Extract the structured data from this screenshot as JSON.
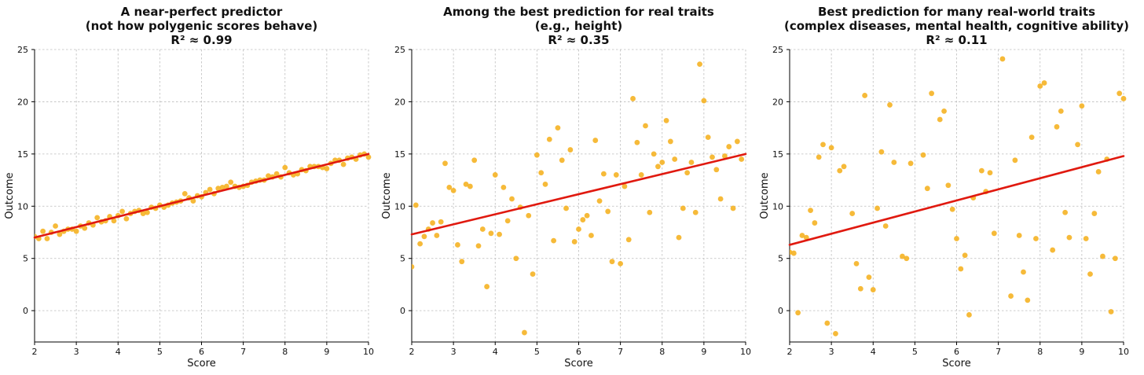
{
  "chart_data": [
    {
      "type": "scatter",
      "title_lines": [
        "A near-perfect predictor",
        "(not how polygenic scores behave)",
        "R² ≈ 0.99"
      ],
      "xlabel": "Score",
      "ylabel": "Outcome",
      "xlim": [
        2,
        10
      ],
      "ylim": [
        -3,
        25
      ],
      "xticks": [
        2,
        3,
        4,
        5,
        6,
        7,
        8,
        9,
        10
      ],
      "yticks": [
        0,
        5,
        10,
        15,
        20,
        25
      ],
      "grid": true,
      "point_color": "#F5B324",
      "line_color": "#E0190F",
      "fit_line": {
        "x": [
          2,
          10
        ],
        "y": [
          7.0,
          15.0
        ]
      },
      "points": [
        [
          2.0,
          7.1
        ],
        [
          2.1,
          6.9
        ],
        [
          2.2,
          7.6
        ],
        [
          2.3,
          6.9
        ],
        [
          2.4,
          7.5
        ],
        [
          2.5,
          8.1
        ],
        [
          2.6,
          7.3
        ],
        [
          2.7,
          7.6
        ],
        [
          2.8,
          7.8
        ],
        [
          2.9,
          7.8
        ],
        [
          3.0,
          7.6
        ],
        [
          3.1,
          8.1
        ],
        [
          3.2,
          7.9
        ],
        [
          3.3,
          8.4
        ],
        [
          3.4,
          8.2
        ],
        [
          3.5,
          8.9
        ],
        [
          3.6,
          8.5
        ],
        [
          3.7,
          8.6
        ],
        [
          3.8,
          9.0
        ],
        [
          3.9,
          8.6
        ],
        [
          4.0,
          9.1
        ],
        [
          4.1,
          9.5
        ],
        [
          4.2,
          8.8
        ],
        [
          4.3,
          9.3
        ],
        [
          4.4,
          9.5
        ],
        [
          4.5,
          9.6
        ],
        [
          4.6,
          9.3
        ],
        [
          4.7,
          9.4
        ],
        [
          4.8,
          9.9
        ],
        [
          4.9,
          9.8
        ],
        [
          5.0,
          10.1
        ],
        [
          5.1,
          9.9
        ],
        [
          5.2,
          10.1
        ],
        [
          5.3,
          10.3
        ],
        [
          5.4,
          10.4
        ],
        [
          5.5,
          10.5
        ],
        [
          5.6,
          11.2
        ],
        [
          5.7,
          10.8
        ],
        [
          5.8,
          10.5
        ],
        [
          5.9,
          11.0
        ],
        [
          6.0,
          10.9
        ],
        [
          6.1,
          11.3
        ],
        [
          6.2,
          11.6
        ],
        [
          6.3,
          11.2
        ],
        [
          6.4,
          11.7
        ],
        [
          6.5,
          11.8
        ],
        [
          6.6,
          11.9
        ],
        [
          6.7,
          12.3
        ],
        [
          6.8,
          11.9
        ],
        [
          6.9,
          11.8
        ],
        [
          7.0,
          11.9
        ],
        [
          7.1,
          12.0
        ],
        [
          7.2,
          12.3
        ],
        [
          7.3,
          12.4
        ],
        [
          7.4,
          12.5
        ],
        [
          7.5,
          12.5
        ],
        [
          7.6,
          12.9
        ],
        [
          7.7,
          12.8
        ],
        [
          7.8,
          13.1
        ],
        [
          7.9,
          12.8
        ],
        [
          8.0,
          13.7
        ],
        [
          8.1,
          13.2
        ],
        [
          8.2,
          13.0
        ],
        [
          8.3,
          13.1
        ],
        [
          8.4,
          13.5
        ],
        [
          8.5,
          13.4
        ],
        [
          8.6,
          13.8
        ],
        [
          8.7,
          13.8
        ],
        [
          8.8,
          13.8
        ],
        [
          8.9,
          13.7
        ],
        [
          9.0,
          13.6
        ],
        [
          9.1,
          14.1
        ],
        [
          9.2,
          14.4
        ],
        [
          9.3,
          14.4
        ],
        [
          9.4,
          14.0
        ],
        [
          9.5,
          14.6
        ],
        [
          9.6,
          14.7
        ],
        [
          9.7,
          14.5
        ],
        [
          9.8,
          14.9
        ],
        [
          9.9,
          15.0
        ],
        [
          10.0,
          14.7
        ]
      ]
    },
    {
      "type": "scatter",
      "title_lines": [
        "Among the best prediction for real traits",
        "(e.g., height)",
        "R² ≈ 0.35"
      ],
      "xlabel": "Score",
      "ylabel": "Outcome",
      "xlim": [
        2,
        10
      ],
      "ylim": [
        -3,
        25
      ],
      "xticks": [
        2,
        3,
        4,
        5,
        6,
        7,
        8,
        9,
        10
      ],
      "yticks": [
        0,
        5,
        10,
        15,
        20,
        25
      ],
      "grid": true,
      "point_color": "#F5B324",
      "line_color": "#E0190F",
      "fit_line": {
        "x": [
          2,
          10
        ],
        "y": [
          7.3,
          15.0
        ]
      },
      "points": [
        [
          2.0,
          4.2
        ],
        [
          2.1,
          10.1
        ],
        [
          2.2,
          6.4
        ],
        [
          2.3,
          7.1
        ],
        [
          2.4,
          7.8
        ],
        [
          2.5,
          8.4
        ],
        [
          2.6,
          7.2
        ],
        [
          2.7,
          8.5
        ],
        [
          2.8,
          14.1
        ],
        [
          2.9,
          11.8
        ],
        [
          3.0,
          11.5
        ],
        [
          3.1,
          6.3
        ],
        [
          3.2,
          4.7
        ],
        [
          3.3,
          12.1
        ],
        [
          3.4,
          11.9
        ],
        [
          3.5,
          14.4
        ],
        [
          3.6,
          6.2
        ],
        [
          3.7,
          7.8
        ],
        [
          3.8,
          2.3
        ],
        [
          3.9,
          7.4
        ],
        [
          4.0,
          13.0
        ],
        [
          4.1,
          7.3
        ],
        [
          4.2,
          11.8
        ],
        [
          4.3,
          8.6
        ],
        [
          4.4,
          10.7
        ],
        [
          4.5,
          5.0
        ],
        [
          4.6,
          9.9
        ],
        [
          4.7,
          -2.1
        ],
        [
          4.8,
          9.1
        ],
        [
          4.9,
          3.5
        ],
        [
          5.0,
          14.9
        ],
        [
          5.1,
          13.2
        ],
        [
          5.2,
          12.1
        ],
        [
          5.3,
          16.4
        ],
        [
          5.4,
          6.7
        ],
        [
          5.5,
          17.5
        ],
        [
          5.6,
          14.4
        ],
        [
          5.7,
          9.8
        ],
        [
          5.8,
          15.4
        ],
        [
          5.9,
          6.6
        ],
        [
          6.0,
          7.8
        ],
        [
          6.1,
          8.7
        ],
        [
          6.2,
          9.1
        ],
        [
          6.3,
          7.2
        ],
        [
          6.4,
          16.3
        ],
        [
          6.5,
          10.5
        ],
        [
          6.6,
          13.1
        ],
        [
          6.7,
          9.5
        ],
        [
          6.8,
          4.7
        ],
        [
          6.9,
          13.0
        ],
        [
          7.0,
          4.5
        ],
        [
          7.1,
          11.9
        ],
        [
          7.2,
          6.8
        ],
        [
          7.3,
          20.3
        ],
        [
          7.4,
          16.1
        ],
        [
          7.5,
          13.0
        ],
        [
          7.6,
          17.7
        ],
        [
          7.7,
          9.4
        ],
        [
          7.8,
          15.0
        ],
        [
          7.9,
          13.8
        ],
        [
          8.0,
          14.2
        ],
        [
          8.1,
          18.2
        ],
        [
          8.2,
          16.2
        ],
        [
          8.3,
          14.5
        ],
        [
          8.4,
          7.0
        ],
        [
          8.5,
          9.8
        ],
        [
          8.6,
          13.2
        ],
        [
          8.7,
          14.2
        ],
        [
          8.8,
          9.4
        ],
        [
          8.9,
          23.6
        ],
        [
          9.0,
          20.1
        ],
        [
          9.1,
          16.6
        ],
        [
          9.2,
          14.7
        ],
        [
          9.3,
          13.5
        ],
        [
          9.4,
          10.7
        ],
        [
          9.5,
          14.8
        ],
        [
          9.6,
          15.7
        ],
        [
          9.7,
          9.8
        ],
        [
          9.8,
          16.2
        ],
        [
          9.9,
          14.5
        ]
      ]
    },
    {
      "type": "scatter",
      "title_lines": [
        "Best prediction for many real-world traits",
        "(complex diseases, mental health, cognitive ability)",
        "R² ≈ 0.11"
      ],
      "xlabel": "Score",
      "ylabel": "Outcome",
      "xlim": [
        2,
        10
      ],
      "ylim": [
        -3,
        25
      ],
      "xticks": [
        2,
        3,
        4,
        5,
        6,
        7,
        8,
        9,
        10
      ],
      "yticks": [
        0,
        5,
        10,
        15,
        20,
        25
      ],
      "grid": true,
      "point_color": "#F5B324",
      "line_color": "#E0190F",
      "fit_line": {
        "x": [
          2,
          10
        ],
        "y": [
          6.3,
          14.8
        ]
      },
      "points": [
        [
          2.0,
          5.6
        ],
        [
          2.1,
          5.5
        ],
        [
          2.2,
          -0.2
        ],
        [
          2.3,
          7.2
        ],
        [
          2.4,
          7.0
        ],
        [
          2.5,
          9.6
        ],
        [
          2.6,
          8.4
        ],
        [
          2.7,
          14.7
        ],
        [
          2.8,
          15.9
        ],
        [
          2.9,
          -1.2
        ],
        [
          3.0,
          15.6
        ],
        [
          3.1,
          -2.2
        ],
        [
          3.2,
          13.4
        ],
        [
          3.3,
          13.8
        ],
        [
          3.5,
          9.3
        ],
        [
          3.6,
          4.5
        ],
        [
          3.7,
          2.1
        ],
        [
          3.8,
          20.6
        ],
        [
          3.9,
          3.2
        ],
        [
          4.0,
          2.0
        ],
        [
          4.1,
          9.8
        ],
        [
          4.2,
          15.2
        ],
        [
          4.3,
          8.1
        ],
        [
          4.4,
          19.7
        ],
        [
          4.5,
          14.2
        ],
        [
          4.7,
          5.2
        ],
        [
          4.8,
          5.0
        ],
        [
          4.9,
          14.1
        ],
        [
          5.2,
          14.9
        ],
        [
          5.3,
          11.7
        ],
        [
          5.4,
          20.8
        ],
        [
          5.6,
          18.3
        ],
        [
          5.7,
          19.1
        ],
        [
          5.8,
          12.0
        ],
        [
          5.9,
          9.7
        ],
        [
          6.0,
          6.9
        ],
        [
          6.1,
          4.0
        ],
        [
          6.2,
          5.3
        ],
        [
          6.3,
          -0.4
        ],
        [
          6.4,
          10.8
        ],
        [
          6.6,
          13.4
        ],
        [
          6.7,
          11.4
        ],
        [
          6.8,
          13.2
        ],
        [
          6.9,
          7.4
        ],
        [
          7.1,
          24.1
        ],
        [
          7.3,
          1.4
        ],
        [
          7.4,
          14.4
        ],
        [
          7.5,
          7.2
        ],
        [
          7.6,
          3.7
        ],
        [
          7.7,
          1.0
        ],
        [
          7.8,
          16.6
        ],
        [
          7.9,
          6.9
        ],
        [
          8.0,
          21.5
        ],
        [
          8.1,
          21.8
        ],
        [
          8.3,
          5.8
        ],
        [
          8.4,
          17.6
        ],
        [
          8.5,
          19.1
        ],
        [
          8.6,
          9.4
        ],
        [
          8.7,
          7.0
        ],
        [
          8.9,
          15.9
        ],
        [
          9.0,
          19.6
        ],
        [
          9.1,
          6.9
        ],
        [
          9.2,
          3.5
        ],
        [
          9.3,
          9.3
        ],
        [
          9.4,
          13.3
        ],
        [
          9.5,
          5.2
        ],
        [
          9.6,
          14.5
        ],
        [
          9.7,
          -0.1
        ],
        [
          9.8,
          5.0
        ],
        [
          9.9,
          20.8
        ],
        [
          10.0,
          20.3
        ]
      ]
    }
  ]
}
